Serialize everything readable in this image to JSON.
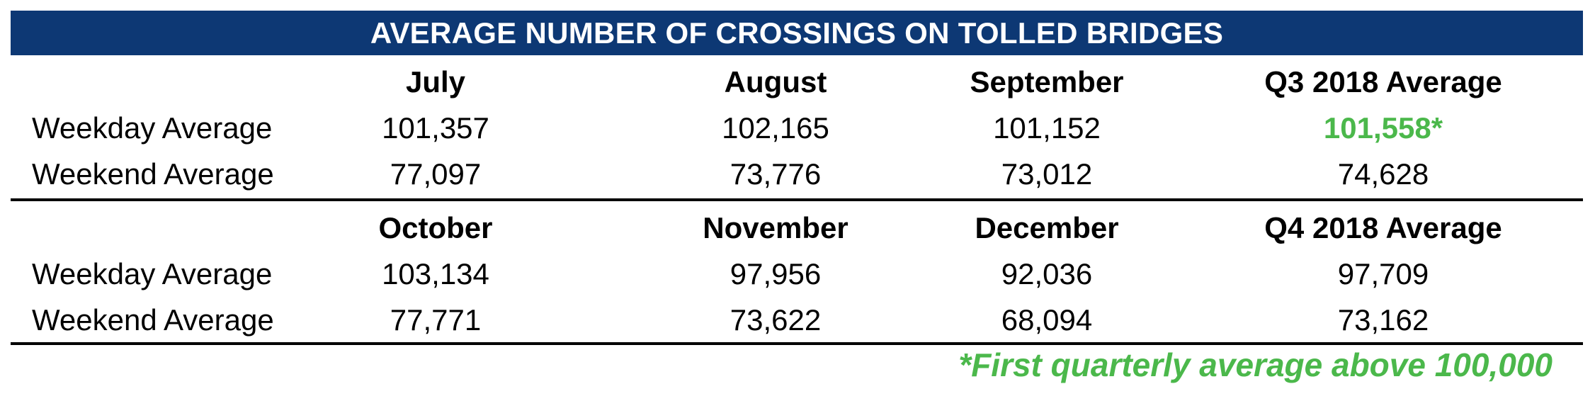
{
  "title": "AVERAGE NUMBER OF CROSSINGS ON TOLLED BRIDGES",
  "colors": {
    "banner": "#0d3874",
    "highlight": "#4bb84b"
  },
  "chart_data": {
    "type": "table",
    "title": "AVERAGE NUMBER OF CROSSINGS ON TOLLED BRIDGES",
    "sections": [
      {
        "columns": [
          "July",
          "August",
          "September",
          "Q3 2018 Average"
        ],
        "rows": [
          {
            "label": "Weekday Average",
            "values": [
              "101,357",
              "102,165",
              "101,152",
              "101,558*"
            ]
          },
          {
            "label": "Weekend Average",
            "values": [
              "77,097",
              "73,776",
              "73,012",
              "74,628"
            ]
          }
        ]
      },
      {
        "columns": [
          "October",
          "November",
          "December",
          "Q4 2018 Average"
        ],
        "rows": [
          {
            "label": "Weekday Average",
            "values": [
              "103,134",
              "97,956",
              "92,036",
              "97,709"
            ]
          },
          {
            "label": "Weekend Average",
            "values": [
              "77,771",
              "73,622",
              "68,094",
              "73,162"
            ]
          }
        ]
      }
    ],
    "footnote": "*First quarterly average above 100,000"
  }
}
